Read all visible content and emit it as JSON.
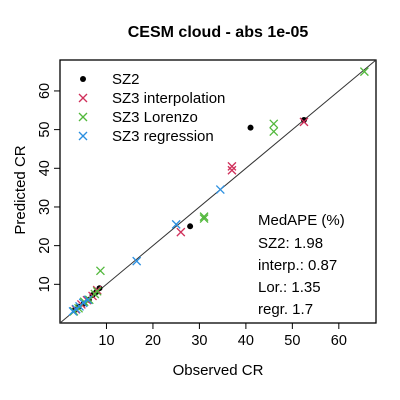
{
  "chart_data": {
    "type": "scatter",
    "title": "CESM cloud  -  abs 1e-05",
    "xlabel": "Observed CR",
    "ylabel": "Predicted CR",
    "xlim": [
      0,
      68
    ],
    "ylim": [
      0,
      68
    ],
    "x_ticks": [
      10,
      20,
      30,
      40,
      50,
      60
    ],
    "y_ticks": [
      10,
      20,
      30,
      40,
      50,
      60
    ],
    "reference_line": "y = x",
    "legend_position": "top-left",
    "series": [
      {
        "name": "SZ2",
        "marker": "dot",
        "color": "#000000",
        "points": [
          [
            3.2,
            3.4
          ],
          [
            4.0,
            4.2
          ],
          [
            5.1,
            5.0
          ],
          [
            6.2,
            6.0
          ],
          [
            7.0,
            7.2
          ],
          [
            7.8,
            8.0
          ],
          [
            8.5,
            9.0
          ],
          [
            28.0,
            25.0
          ],
          [
            41.0,
            50.5
          ],
          [
            52.5,
            52.5
          ]
        ]
      },
      {
        "name": "SZ3 interpolation",
        "marker": "x",
        "color": "#d0305b",
        "points": [
          [
            3.4,
            3.5
          ],
          [
            4.6,
            4.8
          ],
          [
            5.8,
            5.9
          ],
          [
            7.0,
            7.0
          ],
          [
            8.0,
            8.5
          ],
          [
            26.0,
            23.5
          ],
          [
            37.0,
            39.5
          ],
          [
            37.0,
            40.5
          ],
          [
            52.5,
            52.0
          ]
        ]
      },
      {
        "name": "SZ3 Lorenzo",
        "marker": "x",
        "color": "#52b83c",
        "points": [
          [
            3.0,
            3.0
          ],
          [
            4.0,
            3.8
          ],
          [
            5.2,
            5.5
          ],
          [
            6.3,
            6.0
          ],
          [
            7.5,
            7.5
          ],
          [
            8.0,
            8.2
          ],
          [
            8.7,
            13.5
          ],
          [
            31.0,
            27.0
          ],
          [
            31.0,
            27.5
          ],
          [
            46.0,
            49.5
          ],
          [
            46.0,
            51.5
          ],
          [
            65.5,
            65.0
          ]
        ]
      },
      {
        "name": "SZ3 regression",
        "marker": "x",
        "color": "#2b8fe0",
        "points": [
          [
            2.8,
            3.0
          ],
          [
            3.5,
            3.6
          ],
          [
            4.2,
            4.3
          ],
          [
            5.0,
            5.2
          ],
          [
            6.0,
            6.0
          ],
          [
            16.5,
            16.0
          ],
          [
            25.0,
            25.5
          ],
          [
            34.5,
            34.5
          ]
        ]
      }
    ],
    "annotation": {
      "heading": "MedAPE (%)",
      "lines": [
        "SZ2: 1.98",
        "interp.: 0.87",
        "Lor.: 1.35",
        "regr. 1.7"
      ]
    }
  }
}
